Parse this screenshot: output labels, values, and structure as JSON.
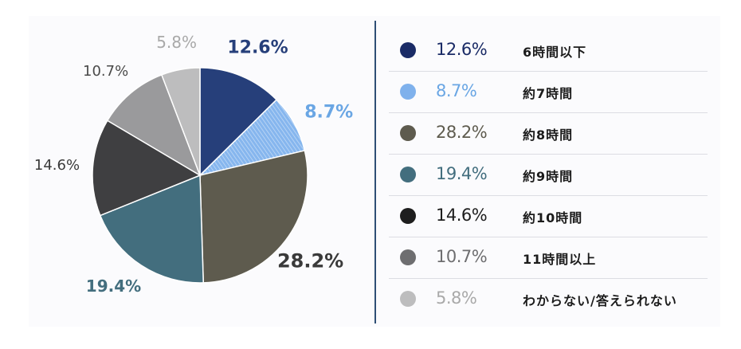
{
  "chart_data": {
    "type": "pie",
    "slices": [
      {
        "label": "6時間以下",
        "value": 12.6,
        "display": "12.6%",
        "color": "#263f7a"
      },
      {
        "label": "約7時間",
        "value": 8.7,
        "display": "8.7%",
        "color": "#7fb1ec"
      },
      {
        "label": "約8時間",
        "value": 28.2,
        "display": "28.2%",
        "color": "#5e5b4e"
      },
      {
        "label": "約9時間",
        "value": 19.4,
        "display": "19.4%",
        "color": "#436e7e"
      },
      {
        "label": "約10時間",
        "value": 14.6,
        "display": "14.6%",
        "color": "#3f3f41"
      },
      {
        "label": "11時間以上",
        "value": 10.7,
        "display": "10.7%",
        "color": "#9a9a9c"
      },
      {
        "label": "わからない/答えられない",
        "value": 5.8,
        "display": "5.8%",
        "color": "#bdbdbe"
      }
    ],
    "label_colors": [
      "#263f7a",
      "#6aa6e4",
      "#3a3a3a",
      "#436e7e",
      "#3a3a3a",
      "#4a4a4a",
      "#a9a9a9"
    ],
    "legend_dot_colors": [
      "#1a2b66",
      "#7fb1ec",
      "#5e5b4e",
      "#436e7e",
      "#1e1e1e",
      "#6e6e70",
      "#bdbdbe"
    ],
    "legend_value_colors": [
      "#1a2b66",
      "#6aa6e4",
      "#5e5b4e",
      "#436e7e",
      "#1e1e1e",
      "#6e6e70",
      "#a9a9a9"
    ],
    "start_angle_deg": 0,
    "direction": "clockwise",
    "legend_placement": "right"
  }
}
